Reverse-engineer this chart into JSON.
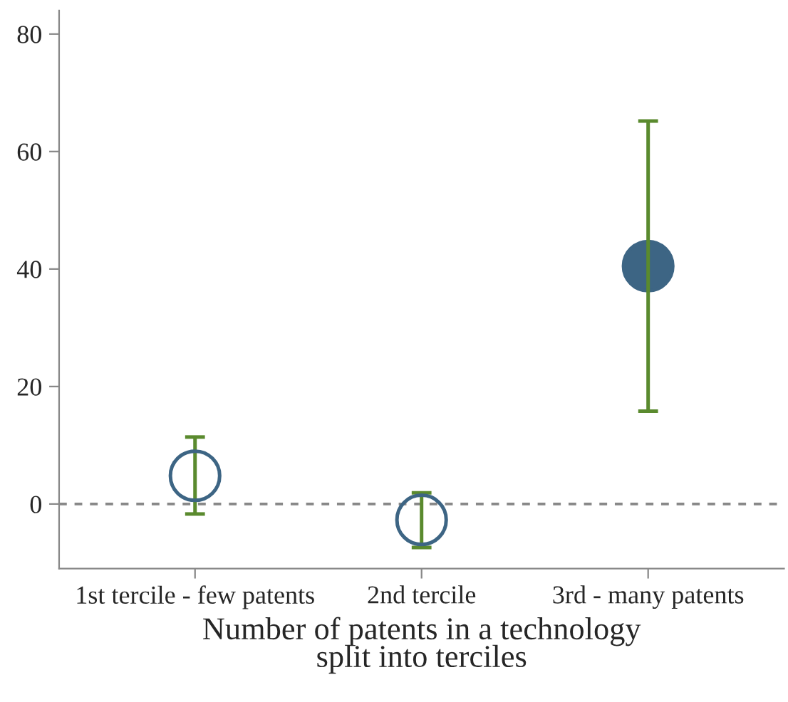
{
  "chart_data": {
    "type": "scatter",
    "xlabel": "Number of patents in a technology\nsplit into terciles",
    "categories": [
      "1st tercile - few patents",
      "2nd tercile",
      "3rd - many patents"
    ],
    "series": [
      {
        "color": "#3d6584",
        "values": [
          4.8,
          -2.7,
          null
        ],
        "errors": [
          [
            -1.7,
            11.4
          ],
          [
            -7.4,
            1.9
          ],
          null
        ]
      },
      {
        "color": "#3d6584",
        "values": [
          null,
          null,
          40.5
        ],
        "errors": [
          null,
          null,
          [
            15.8,
            65.2
          ]
        ]
      }
    ],
    "marker": "circle",
    "ylim": [
      -11,
      84
    ],
    "yticks": [
      0,
      20,
      40,
      60,
      80
    ],
    "ref_lines": [
      {
        "axis": "y",
        "value": 0,
        "color": "#888888",
        "line_style": "dashed"
      }
    ],
    "grid": false,
    "legend": false
  }
}
